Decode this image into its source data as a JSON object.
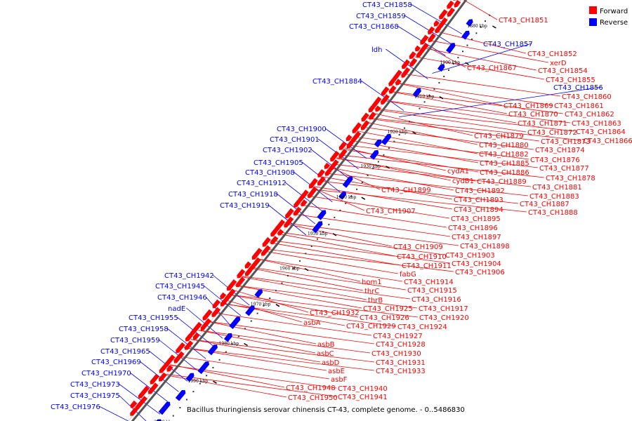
{
  "caption": "Bacillus thuringiensis serovar chinensis CT-43, complete genome. - 0..5486830",
  "legend": [
    {
      "label": "Forward",
      "color": "#ff0000"
    },
    {
      "label": "Reverse",
      "color": "#0000ff"
    }
  ],
  "colors": {
    "forward": "#ff0000",
    "reverse": "#0000ff",
    "backbone": "#555555"
  },
  "ticks": [
    "1880 kbp",
    "1900 kbp",
    "1910 kbp",
    "1920 kbp",
    "1930 kbp",
    "1940 kbp",
    "1950 kbp",
    "1960 kbp",
    "1970 kbp",
    "1980 kbp",
    "1990 kbp",
    "2000 kbp"
  ],
  "forward_genes": [
    "CT43_CH1851",
    "CT43_CH1852",
    "xerD",
    "CT43_CH1854",
    "CT43_CH1855",
    "CT43_CH1867",
    "CT43_CH1860",
    "CT43_CH1869",
    "CT43_CH1861",
    "CT43_CH1870",
    "CT43_CH1862",
    "CT43_CH1871",
    "CT43_CH1863",
    "CT43_CH1872",
    "CT43_CH1864",
    "CT43_CH1879",
    "CT43_CH1873",
    "CT43_CH1866",
    "CT43_CH1880",
    "CT43_CH1874",
    "CT43_CH1882",
    "CT43_CH1876",
    "CT43_CH1885",
    "CT43_CH1877",
    "cydA1",
    "CT43_CH1886",
    "CT43_CH1878",
    "cydB1",
    "CT43_CH1889",
    "CT43_CH1881",
    "CT43_CH1899",
    "CT43_CH1892",
    "CT43_CH1883",
    "CT43_CH1893",
    "CT43_CH1887",
    "CT43_CH1894",
    "CT43_CH1888",
    "CT43_CH1907",
    "CT43_CH1895",
    "CT43_CH1896",
    "CT43_CH1897",
    "CT43_CH1909",
    "CT43_CH1898",
    "CT43_CH1903",
    "CT43_CH1910",
    "CT43_CH1904",
    "CT43_CH1911",
    "fabG",
    "CT43_CH1906",
    "hom1",
    "CT43_CH1914",
    "thrC",
    "CT43_CH1915",
    "thrB",
    "CT43_CH1916",
    "CT43_CH1925",
    "CT43_CH1917",
    "CT43_CH1932",
    "CT43_CH1926",
    "CT43_CH1920",
    "asbA",
    "CT43_CH1929",
    "CT43_CH1924",
    "CT43_CH1927",
    "asbB",
    "CT43_CH1928",
    "asbC",
    "CT43_CH1930",
    "asbD",
    "CT43_CH1931",
    "asbE",
    "CT43_CH1933",
    "asbF",
    "CT43_CH1948",
    "CT43_CH1940",
    "CT43_CH1950",
    "CT43_CH1941"
  ],
  "reverse_genes": [
    "CT43_CH1858",
    "CT43_CH1859",
    "CT43_CH1868",
    "CT43_CH1857",
    "ldh",
    "CT43_CH1856",
    "CT43_CH1884",
    "CT43_CH1900",
    "CT43_CH1901",
    "CT43_CH1902",
    "CT43_CH1905",
    "CT43_CH1908",
    "CT43_CH1912",
    "CT43_CH1918",
    "CT43_CH1919",
    "CT43_CH1942",
    "CT43_CH1945",
    "CT43_CH1946",
    "nadE",
    "CT43_CH1955",
    "CT43_CH1958",
    "CT43_CH1959",
    "CT43_CH1965",
    "CT43_CH1969",
    "CT43_CH1970",
    "CT43_CH1973",
    "CT43_CH1975",
    "CT43_CH1976"
  ]
}
